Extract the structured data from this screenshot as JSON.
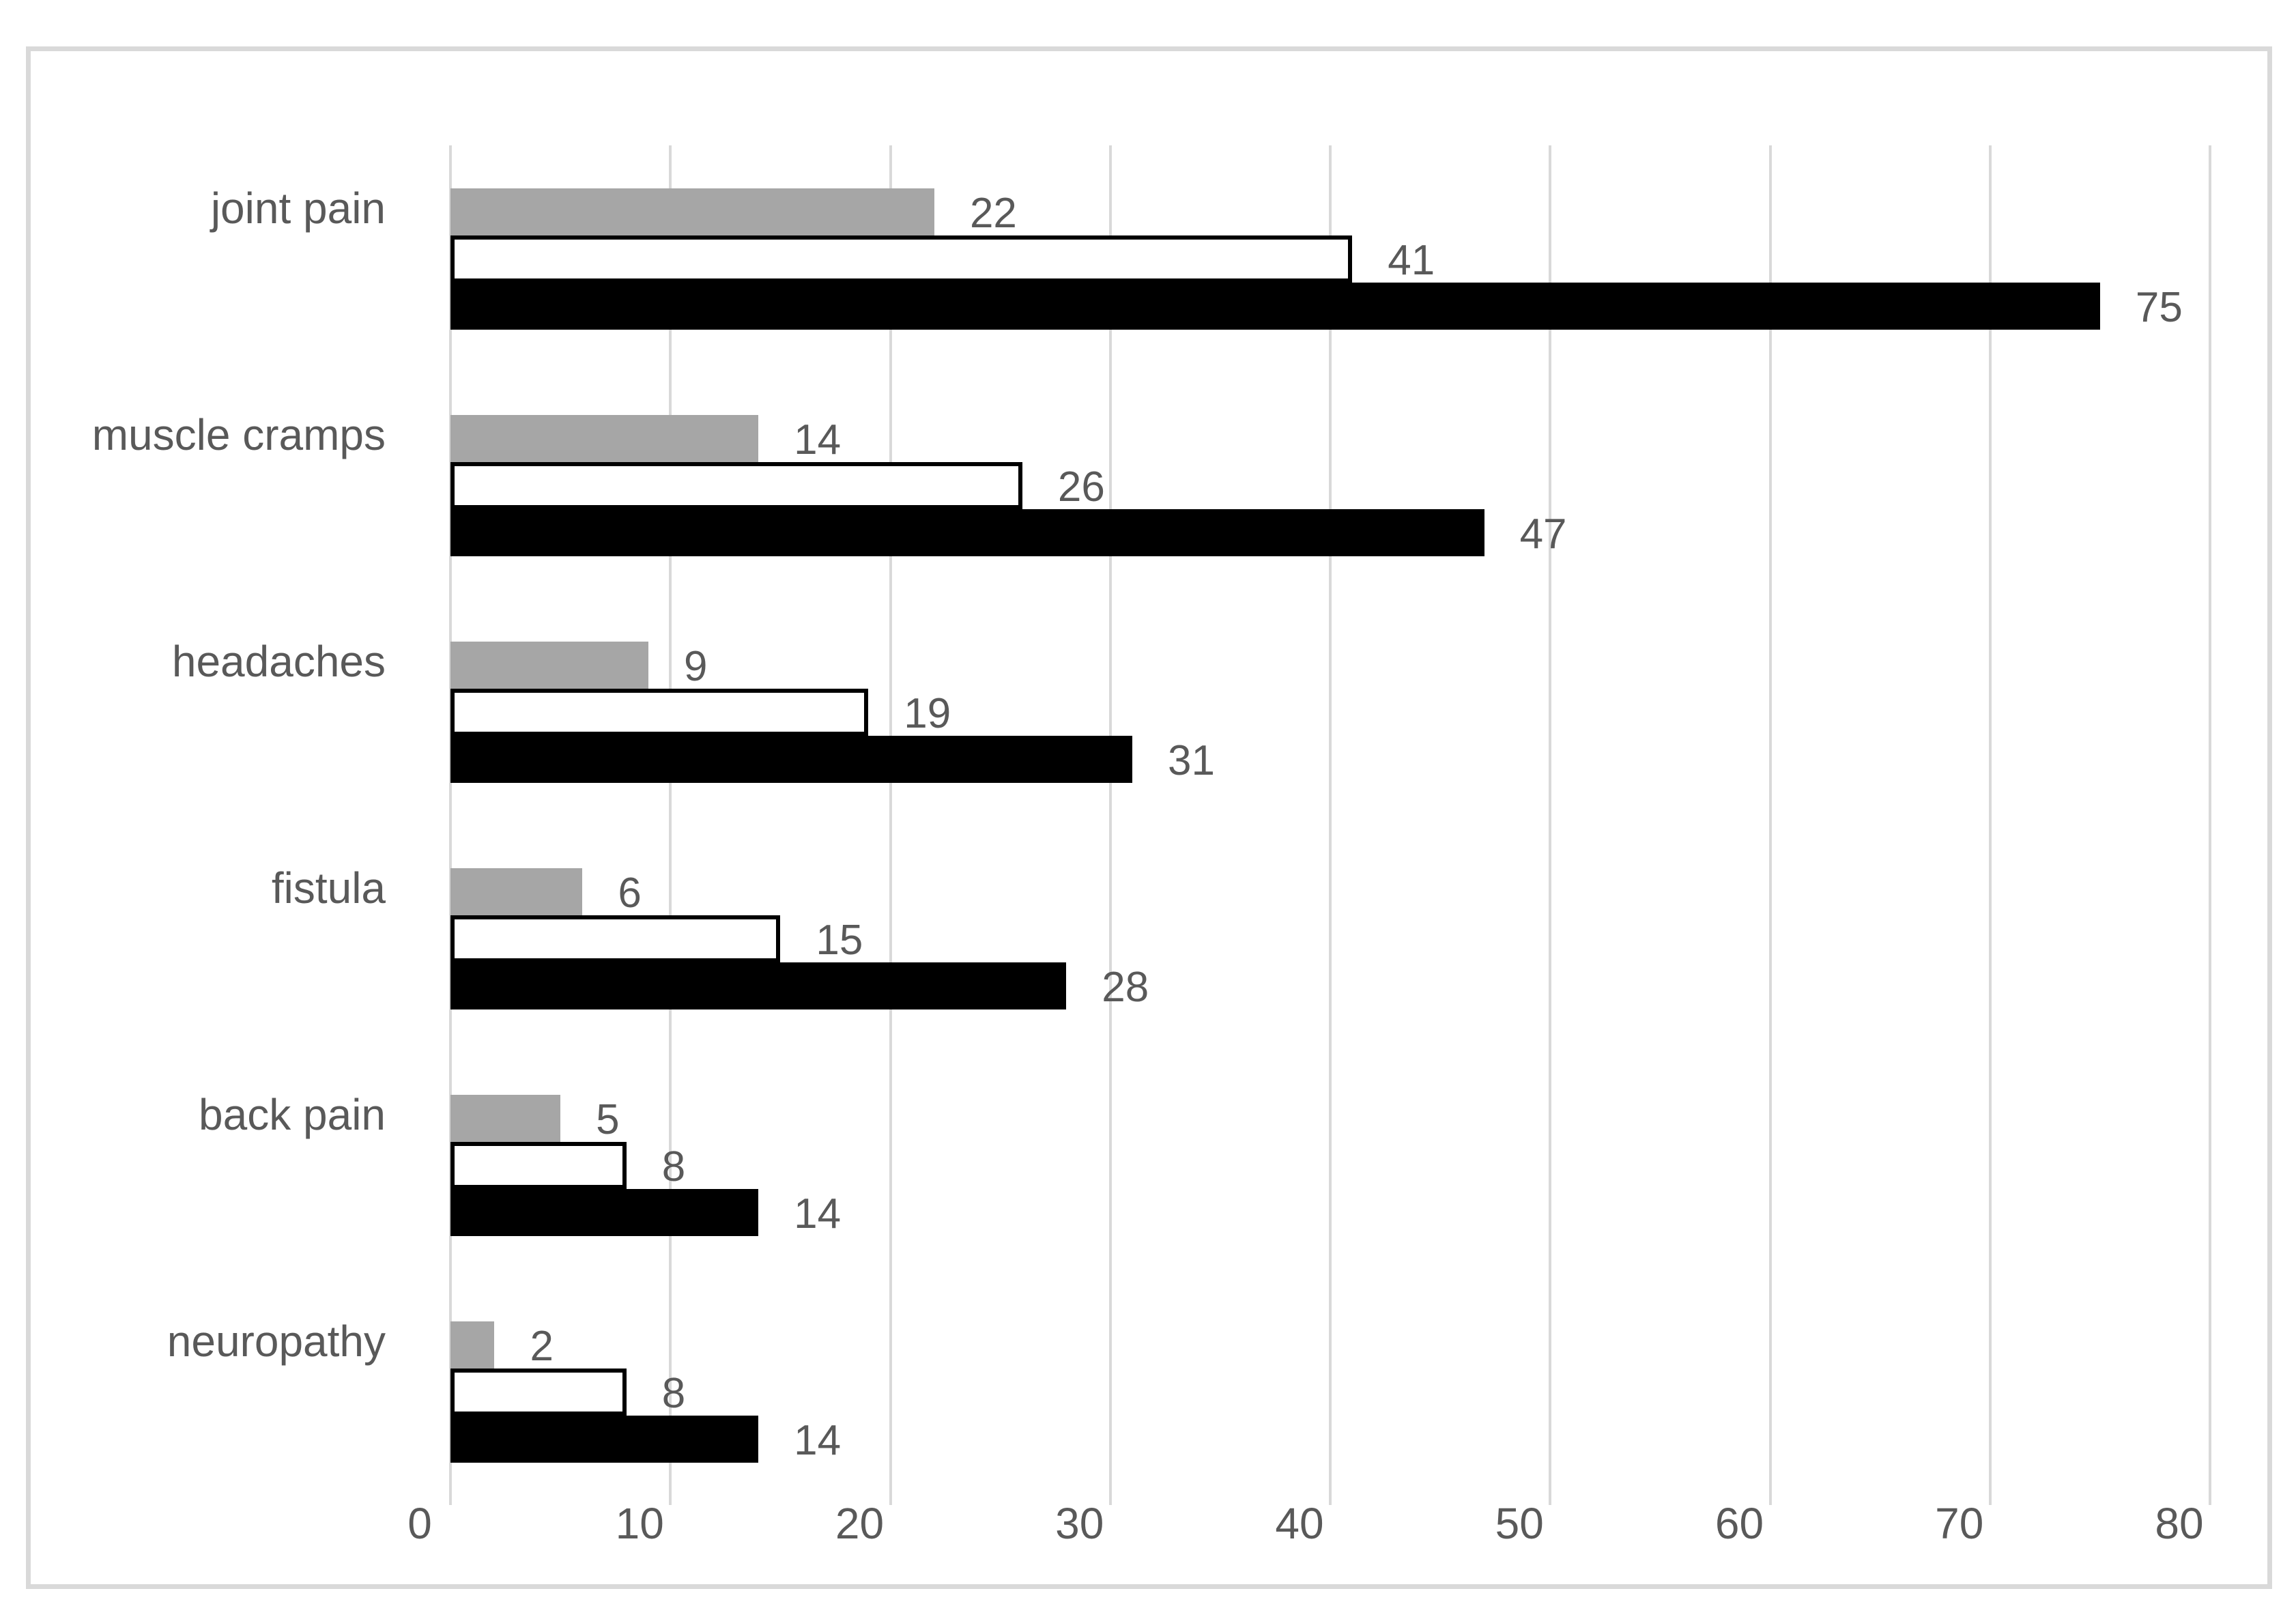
{
  "chart_data": {
    "type": "bar",
    "orientation": "horizontal",
    "title": "",
    "xlabel": "",
    "ylabel": "",
    "legend": "none",
    "grid": "vertical-lines-on",
    "data_labels": "shown-right-of-bar-end",
    "categories": [
      "joint pain",
      "muscle cramps",
      "headaches",
      "fistula",
      "back pain",
      "neuropathy"
    ],
    "series": [
      {
        "name": "gray-series",
        "color": "#a6a6a6",
        "border": "none",
        "values": [
          22,
          14,
          9,
          6,
          5,
          2
        ]
      },
      {
        "name": "white-series",
        "color": "#ffffff",
        "border": "#000000",
        "values": [
          41,
          26,
          19,
          15,
          8,
          8
        ]
      },
      {
        "name": "black-series",
        "color": "#000000",
        "border": "none",
        "values": [
          75,
          47,
          31,
          28,
          14,
          14
        ]
      }
    ],
    "x_axis": {
      "min": 0,
      "max": 80,
      "tick_step": 10,
      "ticks": [
        "0",
        "10",
        "20",
        "30",
        "40",
        "50",
        "60",
        "70",
        "80"
      ]
    }
  },
  "styles": {
    "background": "#ffffff",
    "frame_border": "#d9d9d9",
    "gridline": "#d9d9d9",
    "text": "#595959",
    "bar_gray": "#a6a6a6",
    "bar_white_fill": "#ffffff",
    "bar_outline": "#000000",
    "bar_black": "#000000"
  }
}
